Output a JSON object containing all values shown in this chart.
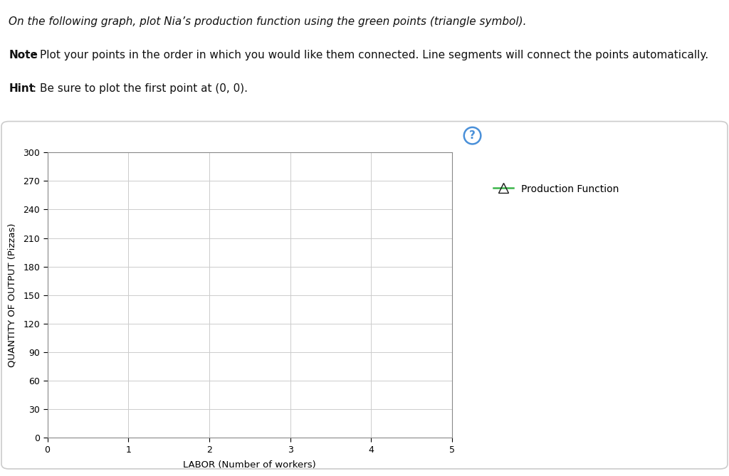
{
  "title_text_italic": "On the following graph, plot Nia’s production function using the green points (triangle symbol).",
  "note_bold": "Note",
  "note_rest": ": Plot your points in the order in which you would like them connected. Line segments will connect the points automatically.",
  "hint_bold": "Hint",
  "hint_rest": ": Be sure to plot the first point at (0, 0).",
  "xlabel": "LABOR (Number of workers)",
  "ylabel": "QUANTITY OF OUTPUT (Pizzas)",
  "xlim": [
    0,
    5
  ],
  "ylim": [
    0,
    300
  ],
  "xticks": [
    0,
    1,
    2,
    3,
    4,
    5
  ],
  "yticks": [
    0,
    30,
    60,
    90,
    120,
    150,
    180,
    210,
    240,
    270,
    300
  ],
  "legend_label": "Production Function",
  "line_color": "#3cb54a",
  "marker": "^",
  "marker_facecolor": "none",
  "marker_edgecolor": "#1a1a1a",
  "background_color": "#ffffff",
  "grid_color": "#cccccc",
  "figure_bg": "#ffffff",
  "question_mark_color": "#4a90d9",
  "box_edge_color": "#cccccc",
  "font_size_text": 11,
  "font_size_axis": 9.5,
  "font_size_legend": 10
}
